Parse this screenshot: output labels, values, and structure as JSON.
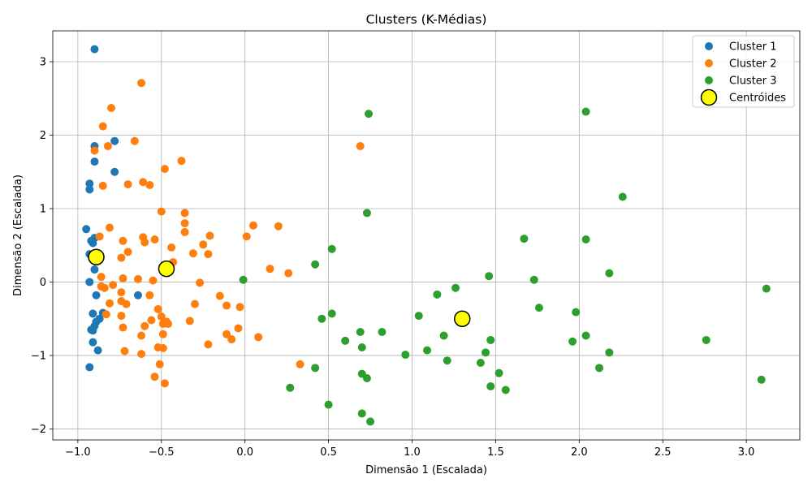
{
  "chart_data": {
    "type": "scatter",
    "title": "Clusters (K-Médias)",
    "xlabel": "Dimensão 1 (Escalada)",
    "ylabel": "Dimensão 2 (Escalada)",
    "xlim": [
      -1.15,
      3.32
    ],
    "ylim": [
      -2.15,
      3.42
    ],
    "xticks": [
      -1.0,
      -0.5,
      0.0,
      0.5,
      1.0,
      1.5,
      2.0,
      2.5,
      3.0
    ],
    "xtick_labels": [
      "−1.0",
      "−0.5",
      "0.0",
      "0.5",
      "1.0",
      "1.5",
      "2.0",
      "2.5",
      "3.0"
    ],
    "yticks": [
      -2,
      -1,
      0,
      1,
      2,
      3
    ],
    "ytick_labels": [
      "−2",
      "−1",
      "0",
      "1",
      "2",
      "3"
    ],
    "grid": true,
    "legend_position": "top-right",
    "series": [
      {
        "name": "Cluster 1",
        "color": "#1f77b4",
        "points": [
          [
            -0.9,
            3.17
          ],
          [
            -0.9,
            1.85
          ],
          [
            -0.78,
            1.92
          ],
          [
            -0.9,
            1.64
          ],
          [
            -0.78,
            1.5
          ],
          [
            -0.93,
            1.34
          ],
          [
            -0.93,
            1.26
          ],
          [
            -0.95,
            0.72
          ],
          [
            -0.9,
            0.6
          ],
          [
            -0.92,
            0.56
          ],
          [
            -0.91,
            0.53
          ],
          [
            -0.93,
            0.38
          ],
          [
            -0.9,
            0.17
          ],
          [
            -0.93,
            0.0
          ],
          [
            -0.89,
            -0.18
          ],
          [
            -0.64,
            -0.18
          ],
          [
            -0.91,
            -0.43
          ],
          [
            -0.85,
            -0.42
          ],
          [
            -0.87,
            -0.5
          ],
          [
            -0.89,
            -0.54
          ],
          [
            -0.9,
            -0.6
          ],
          [
            -0.92,
            -0.65
          ],
          [
            -0.91,
            -0.66
          ],
          [
            -0.91,
            -0.82
          ],
          [
            -0.88,
            -0.93
          ],
          [
            -0.93,
            -1.16
          ]
        ]
      },
      {
        "name": "Cluster 2",
        "color": "#ff7f0e",
        "points": [
          [
            -0.62,
            2.71
          ],
          [
            -0.8,
            2.37
          ],
          [
            -0.85,
            2.12
          ],
          [
            -0.66,
            1.92
          ],
          [
            -0.82,
            1.85
          ],
          [
            -0.9,
            1.79
          ],
          [
            0.69,
            1.85
          ],
          [
            -0.38,
            1.65
          ],
          [
            -0.48,
            1.54
          ],
          [
            -0.61,
            1.36
          ],
          [
            -0.7,
            1.33
          ],
          [
            -0.57,
            1.32
          ],
          [
            -0.85,
            1.31
          ],
          [
            -0.5,
            0.96
          ],
          [
            -0.36,
            0.94
          ],
          [
            -0.36,
            0.8
          ],
          [
            0.05,
            0.77
          ],
          [
            0.2,
            0.76
          ],
          [
            -0.81,
            0.74
          ],
          [
            -0.36,
            0.68
          ],
          [
            -0.21,
            0.63
          ],
          [
            0.01,
            0.62
          ],
          [
            -0.87,
            0.62
          ],
          [
            -0.61,
            0.61
          ],
          [
            -0.54,
            0.58
          ],
          [
            -0.73,
            0.56
          ],
          [
            -0.6,
            0.54
          ],
          [
            -0.25,
            0.51
          ],
          [
            -0.44,
            0.47
          ],
          [
            -0.7,
            0.41
          ],
          [
            -0.31,
            0.39
          ],
          [
            -0.22,
            0.38
          ],
          [
            -0.74,
            0.33
          ],
          [
            -0.43,
            0.27
          ],
          [
            0.15,
            0.18
          ],
          [
            0.26,
            0.12
          ],
          [
            -0.73,
            0.05
          ],
          [
            -0.64,
            0.04
          ],
          [
            -0.55,
            0.02
          ],
          [
            -0.27,
            -0.01
          ],
          [
            -0.79,
            -0.04
          ],
          [
            -0.86,
            -0.06
          ],
          [
            -0.84,
            -0.08
          ],
          [
            -0.74,
            -0.14
          ],
          [
            -0.57,
            -0.18
          ],
          [
            -0.15,
            -0.19
          ],
          [
            -0.81,
            -0.29
          ],
          [
            -0.71,
            -0.3
          ],
          [
            -0.3,
            -0.3
          ],
          [
            -0.11,
            -0.32
          ],
          [
            -0.03,
            -0.34
          ],
          [
            -0.52,
            -0.37
          ],
          [
            -0.83,
            -0.44
          ],
          [
            -0.74,
            -0.46
          ],
          [
            -0.5,
            -0.47
          ],
          [
            -0.56,
            -0.52
          ],
          [
            -0.33,
            -0.53
          ],
          [
            -0.47,
            -0.54
          ],
          [
            -0.46,
            -0.57
          ],
          [
            -0.49,
            -0.57
          ],
          [
            -0.6,
            -0.6
          ],
          [
            -0.73,
            -0.62
          ],
          [
            -0.04,
            -0.63
          ],
          [
            -0.11,
            -0.71
          ],
          [
            -0.49,
            -0.71
          ],
          [
            -0.62,
            -0.73
          ],
          [
            0.08,
            -0.75
          ],
          [
            -0.08,
            -0.78
          ],
          [
            -0.22,
            -0.85
          ],
          [
            -0.52,
            -0.89
          ],
          [
            -0.49,
            -0.9
          ],
          [
            -0.72,
            -0.94
          ],
          [
            -0.62,
            -0.98
          ],
          [
            -0.51,
            -1.12
          ],
          [
            0.33,
            -1.12
          ],
          [
            -0.54,
            -1.29
          ],
          [
            -0.48,
            -1.38
          ],
          [
            -0.74,
            -0.26
          ],
          [
            -0.86,
            0.07
          ]
        ]
      },
      {
        "name": "Cluster 3",
        "color": "#2ca02c",
        "points": [
          [
            2.04,
            2.32
          ],
          [
            0.74,
            2.29
          ],
          [
            2.26,
            1.16
          ],
          [
            0.73,
            0.94
          ],
          [
            1.67,
            0.59
          ],
          [
            2.04,
            0.58
          ],
          [
            0.52,
            0.45
          ],
          [
            0.42,
            0.24
          ],
          [
            2.18,
            0.12
          ],
          [
            1.46,
            0.08
          ],
          [
            -0.01,
            0.03
          ],
          [
            1.73,
            0.03
          ],
          [
            3.12,
            -0.09
          ],
          [
            1.26,
            -0.08
          ],
          [
            1.15,
            -0.17
          ],
          [
            1.76,
            -0.35
          ],
          [
            1.98,
            -0.41
          ],
          [
            0.52,
            -0.43
          ],
          [
            1.04,
            -0.46
          ],
          [
            0.46,
            -0.5
          ],
          [
            0.82,
            -0.68
          ],
          [
            0.69,
            -0.68
          ],
          [
            1.19,
            -0.73
          ],
          [
            2.04,
            -0.73
          ],
          [
            0.6,
            -0.8
          ],
          [
            1.47,
            -0.79
          ],
          [
            1.96,
            -0.81
          ],
          [
            2.76,
            -0.79
          ],
          [
            0.7,
            -0.89
          ],
          [
            1.09,
            -0.93
          ],
          [
            2.18,
            -0.96
          ],
          [
            1.44,
            -0.96
          ],
          [
            0.96,
            -0.99
          ],
          [
            1.21,
            -1.07
          ],
          [
            1.41,
            -1.1
          ],
          [
            0.42,
            -1.17
          ],
          [
            2.12,
            -1.17
          ],
          [
            0.7,
            -1.25
          ],
          [
            1.52,
            -1.24
          ],
          [
            0.73,
            -1.31
          ],
          [
            3.09,
            -1.33
          ],
          [
            1.47,
            -1.42
          ],
          [
            0.27,
            -1.44
          ],
          [
            1.56,
            -1.47
          ],
          [
            0.5,
            -1.67
          ],
          [
            0.7,
            -1.79
          ],
          [
            0.75,
            -1.9
          ]
        ]
      }
    ],
    "centroids": {
      "name": "Centróides",
      "color": "#ffff00",
      "edge_color": "#000000",
      "points": [
        [
          -0.89,
          0.34
        ],
        [
          -0.47,
          0.18
        ],
        [
          1.3,
          -0.5
        ]
      ]
    }
  }
}
